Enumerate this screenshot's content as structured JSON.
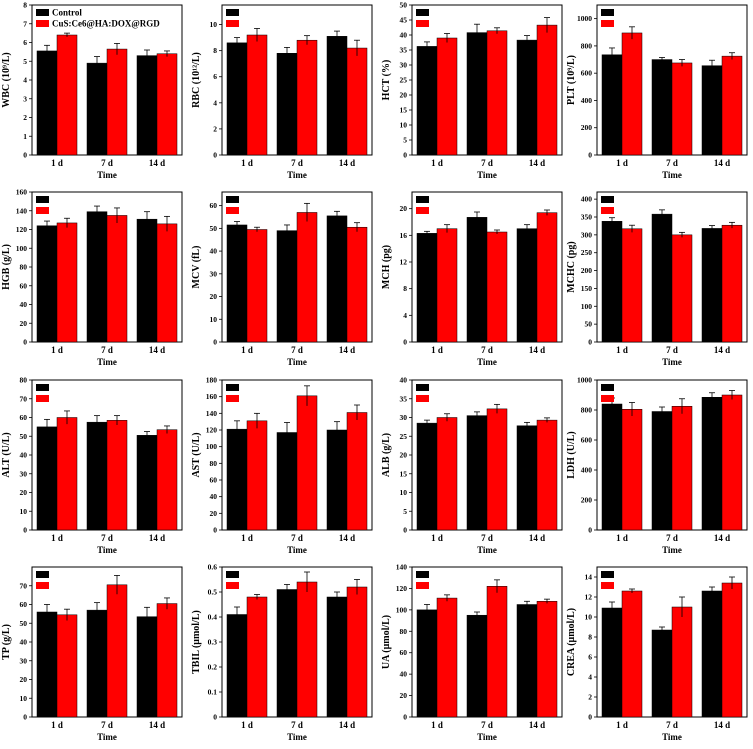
{
  "legend": {
    "series": [
      {
        "name": "Control",
        "color": "#000000"
      },
      {
        "name": "CuS:Ce6@HA:DOX@RGD",
        "color": "#ff0000"
      }
    ]
  },
  "chart_data": [
    {
      "type": "bar",
      "ylabel": "WBC (10⁹/L)",
      "xlabel": "Time",
      "categories": [
        "1 d",
        "7 d",
        "14 d"
      ],
      "ylim": [
        0,
        8
      ],
      "yticks": [
        0,
        1,
        2,
        3,
        4,
        5,
        6,
        7,
        8
      ],
      "legend": true,
      "series": [
        {
          "name": "Control",
          "values": [
            5.55,
            4.9,
            5.3
          ],
          "errors": [
            0.3,
            0.35,
            0.3
          ]
        },
        {
          "name": "CuS:Ce6@HA:DOX@RGD",
          "values": [
            6.4,
            5.65,
            5.4
          ],
          "errors": [
            0.1,
            0.3,
            0.15
          ]
        }
      ]
    },
    {
      "type": "bar",
      "ylabel": "RBC (10¹²/L)",
      "xlabel": "Time",
      "categories": [
        "1 d",
        "7 d",
        "14 d"
      ],
      "ylim": [
        0,
        11.5
      ],
      "yticks": [
        0,
        2,
        4,
        6,
        8,
        10
      ],
      "series": [
        {
          "values": [
            8.6,
            7.8,
            9.1
          ],
          "errors": [
            0.4,
            0.45,
            0.4
          ]
        },
        {
          "values": [
            9.2,
            8.8,
            8.2
          ],
          "errors": [
            0.5,
            0.35,
            0.6
          ]
        }
      ]
    },
    {
      "type": "bar",
      "ylabel": "HCT (%)",
      "xlabel": "Time",
      "categories": [
        "1 d",
        "7 d",
        "14 d"
      ],
      "ylim": [
        0,
        50
      ],
      "yticks": [
        0,
        5,
        10,
        15,
        20,
        25,
        30,
        35,
        40,
        45,
        50
      ],
      "series": [
        {
          "values": [
            36.2,
            40.8,
            38.3
          ],
          "errors": [
            1.5,
            2.8,
            1.5
          ]
        },
        {
          "values": [
            39,
            41.4,
            43.3
          ],
          "errors": [
            1.5,
            1.0,
            2.5
          ]
        }
      ]
    },
    {
      "type": "bar",
      "ylabel": "PLT (10⁹/L)",
      "xlabel": "Time",
      "categories": [
        "1 d",
        "7 d",
        "14 d"
      ],
      "ylim": [
        0,
        1100
      ],
      "yticks": [
        0,
        200,
        400,
        600,
        800,
        1000
      ],
      "series": [
        {
          "values": [
            735,
            700,
            655
          ],
          "errors": [
            50,
            15,
            40
          ]
        },
        {
          "values": [
            895,
            675,
            725
          ],
          "errors": [
            45,
            25,
            25
          ]
        }
      ]
    },
    {
      "type": "bar",
      "ylabel": "HGB (g/L)",
      "xlabel": "Time",
      "categories": [
        "1 d",
        "7 d",
        "14 d"
      ],
      "ylim": [
        0,
        160
      ],
      "yticks": [
        0,
        20,
        40,
        60,
        80,
        100,
        120,
        140,
        160
      ],
      "series": [
        {
          "values": [
            124,
            139,
            131
          ],
          "errors": [
            5,
            6,
            8
          ]
        },
        {
          "values": [
            127,
            135,
            126
          ],
          "errors": [
            5,
            8,
            8
          ]
        }
      ]
    },
    {
      "type": "bar",
      "ylabel": "MCV (fL)",
      "xlabel": "Time",
      "categories": [
        "1 d",
        "7 d",
        "14 d"
      ],
      "ylim": [
        0,
        66
      ],
      "yticks": [
        0,
        10,
        20,
        30,
        40,
        50,
        60
      ],
      "series": [
        {
          "values": [
            51.5,
            49,
            55.5
          ],
          "errors": [
            1.5,
            2.5,
            2
          ]
        },
        {
          "values": [
            49.5,
            57,
            50.5
          ],
          "errors": [
            1,
            4,
            2
          ]
        }
      ]
    },
    {
      "type": "bar",
      "ylabel": "MCH (pg)",
      "xlabel": "Time",
      "categories": [
        "1 d",
        "7 d",
        "14 d"
      ],
      "ylim": [
        0,
        22.5
      ],
      "yticks": [
        0,
        4,
        8,
        12,
        16,
        20
      ],
      "series": [
        {
          "values": [
            16.3,
            18.7,
            17
          ],
          "errors": [
            0.3,
            0.8,
            0.6
          ]
        },
        {
          "values": [
            17,
            16.5,
            19.4
          ],
          "errors": [
            0.6,
            0.3,
            0.4
          ]
        }
      ]
    },
    {
      "type": "bar",
      "ylabel": "MCHC (pg)",
      "xlabel": "Time",
      "categories": [
        "1 d",
        "7 d",
        "14 d"
      ],
      "ylim": [
        0,
        420
      ],
      "yticks": [
        0,
        50,
        100,
        150,
        200,
        250,
        300,
        350,
        400
      ],
      "series": [
        {
          "values": [
            338,
            358,
            318
          ],
          "errors": [
            10,
            12,
            8
          ]
        },
        {
          "values": [
            317,
            300,
            327
          ],
          "errors": [
            10,
            7,
            8
          ]
        }
      ]
    },
    {
      "type": "bar",
      "ylabel": "ALT (U/L)",
      "xlabel": "Time",
      "categories": [
        "1 d",
        "7 d",
        "14 d"
      ],
      "ylim": [
        0,
        80
      ],
      "yticks": [
        0,
        10,
        20,
        30,
        40,
        50,
        60,
        70,
        80
      ],
      "series": [
        {
          "values": [
            55,
            57.5,
            50.5
          ],
          "errors": [
            4,
            3.5,
            2
          ]
        },
        {
          "values": [
            60,
            58.5,
            53.5
          ],
          "errors": [
            3.5,
            2.5,
            2
          ]
        }
      ]
    },
    {
      "type": "bar",
      "ylabel": "AST (U/L)",
      "xlabel": "Time",
      "categories": [
        "1 d",
        "7 d",
        "14 d"
      ],
      "ylim": [
        0,
        180
      ],
      "yticks": [
        0,
        20,
        40,
        60,
        80,
        100,
        120,
        140,
        160,
        180
      ],
      "series": [
        {
          "values": [
            121,
            117,
            120
          ],
          "errors": [
            10,
            12,
            10
          ]
        },
        {
          "values": [
            131,
            161,
            141
          ],
          "errors": [
            9,
            12,
            9
          ]
        }
      ]
    },
    {
      "type": "bar",
      "ylabel": "ALB (g/L)",
      "xlabel": "Time",
      "categories": [
        "1 d",
        "7 d",
        "14 d"
      ],
      "ylim": [
        0,
        40
      ],
      "yticks": [
        0,
        5,
        10,
        15,
        20,
        25,
        30,
        35,
        40
      ],
      "series": [
        {
          "values": [
            28.5,
            30.5,
            27.8
          ],
          "errors": [
            0.8,
            1.0,
            0.9
          ]
        },
        {
          "values": [
            30,
            32.3,
            29.3
          ],
          "errors": [
            1.0,
            1.2,
            0.6
          ]
        }
      ]
    },
    {
      "type": "bar",
      "ylabel": "LDH (U/L)",
      "xlabel": "Time",
      "categories": [
        "1 d",
        "7 d",
        "14 d"
      ],
      "ylim": [
        0,
        1000
      ],
      "yticks": [
        0,
        200,
        400,
        600,
        800,
        1000
      ],
      "series": [
        {
          "values": [
            840,
            790,
            885
          ],
          "errors": [
            40,
            30,
            30
          ]
        },
        {
          "values": [
            805,
            825,
            900
          ],
          "errors": [
            45,
            50,
            30
          ]
        }
      ]
    },
    {
      "type": "bar",
      "ylabel": "TP (g/L)",
      "xlabel": "Time",
      "categories": [
        "1 d",
        "7 d",
        "14 d"
      ],
      "ylim": [
        0,
        80
      ],
      "yticks": [
        0,
        10,
        20,
        30,
        40,
        50,
        60,
        70
      ],
      "series": [
        {
          "values": [
            56,
            57,
            53.5
          ],
          "errors": [
            4,
            4,
            5
          ]
        },
        {
          "values": [
            54.5,
            70.5,
            60.5
          ],
          "errors": [
            3,
            5,
            3
          ]
        }
      ]
    },
    {
      "type": "bar",
      "ylabel": "TBIL (μmol/L)",
      "xlabel": "Time",
      "categories": [
        "1 d",
        "7 d",
        "14 d"
      ],
      "ylim": [
        0,
        0.6
      ],
      "yticks": [
        0,
        0.1,
        0.2,
        0.3,
        0.4,
        0.5,
        0.6
      ],
      "series": [
        {
          "values": [
            0.41,
            0.51,
            0.48
          ],
          "errors": [
            0.03,
            0.02,
            0.02
          ]
        },
        {
          "values": [
            0.48,
            0.54,
            0.52
          ],
          "errors": [
            0.01,
            0.04,
            0.03
          ]
        }
      ]
    },
    {
      "type": "bar",
      "ylabel": "UA (μmol/L)",
      "xlabel": "Time",
      "categories": [
        "1 d",
        "7 d",
        "14 d"
      ],
      "ylim": [
        0,
        140
      ],
      "yticks": [
        0,
        20,
        40,
        60,
        80,
        100,
        120,
        140
      ],
      "series": [
        {
          "values": [
            100,
            95,
            105
          ],
          "errors": [
            5,
            3,
            3
          ]
        },
        {
          "values": [
            111,
            122,
            108
          ],
          "errors": [
            3,
            6,
            2
          ]
        }
      ]
    },
    {
      "type": "bar",
      "ylabel": "CREA (μmol/L)",
      "xlabel": "Time",
      "categories": [
        "1 d",
        "7 d",
        "14 d"
      ],
      "ylim": [
        0,
        15
      ],
      "yticks": [
        0,
        2,
        4,
        6,
        8,
        10,
        12,
        14
      ],
      "series": [
        {
          "values": [
            10.9,
            8.7,
            12.6
          ],
          "errors": [
            0.6,
            0.3,
            0.4
          ]
        },
        {
          "values": [
            12.6,
            11,
            13.4
          ],
          "errors": [
            0.2,
            1.0,
            0.6
          ]
        }
      ]
    }
  ]
}
